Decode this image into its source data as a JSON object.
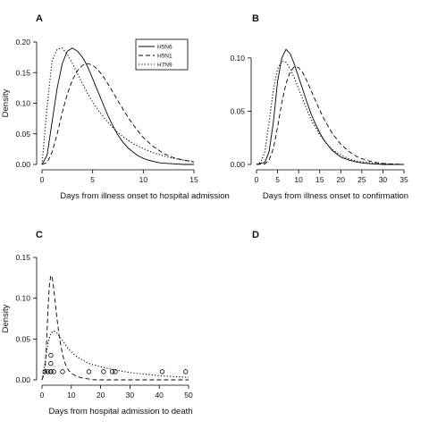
{
  "chart_data": [
    {
      "type": "line",
      "panel_label": "A",
      "xlabel": "Days from illness onset to hospital admission",
      "ylabel": "Density",
      "xlim": [
        0,
        15
      ],
      "ylim": [
        0,
        0.2
      ],
      "xticks": [
        0,
        5,
        10,
        15
      ],
      "yticks": [
        0.0,
        0.05,
        0.1,
        0.15,
        0.2
      ],
      "grid": false,
      "legend": {
        "position": "top-right",
        "entries": [
          "H5N6",
          "H5N1",
          "H7N9"
        ]
      },
      "series": [
        {
          "name": "H5N6",
          "style": "solid",
          "x": [
            0,
            0.5,
            1,
            1.5,
            2,
            2.5,
            3,
            3.5,
            4,
            4.5,
            5,
            5.5,
            6,
            6.5,
            7,
            7.5,
            8,
            8.5,
            9,
            9.5,
            10,
            10.5,
            11,
            11.5,
            12,
            13,
            14,
            15
          ],
          "y": [
            0,
            0.015,
            0.07,
            0.125,
            0.165,
            0.185,
            0.19,
            0.185,
            0.175,
            0.16,
            0.14,
            0.12,
            0.1,
            0.08,
            0.063,
            0.048,
            0.036,
            0.027,
            0.02,
            0.014,
            0.01,
            0.007,
            0.005,
            0.003,
            0.002,
            0.001,
            0,
            0
          ]
        },
        {
          "name": "H5N1",
          "style": "dashed",
          "x": [
            0,
            0.5,
            1,
            1.5,
            2,
            2.5,
            3,
            3.5,
            4,
            4.5,
            5,
            5.5,
            6,
            6.5,
            7,
            7.5,
            8,
            8.5,
            9,
            9.5,
            10,
            11,
            12,
            13,
            14,
            15
          ],
          "y": [
            0,
            0.003,
            0.02,
            0.05,
            0.085,
            0.115,
            0.138,
            0.153,
            0.162,
            0.165,
            0.162,
            0.155,
            0.145,
            0.132,
            0.118,
            0.104,
            0.09,
            0.077,
            0.065,
            0.054,
            0.044,
            0.029,
            0.018,
            0.011,
            0.007,
            0.004
          ]
        },
        {
          "name": "H7N9",
          "style": "dotted",
          "x": [
            0,
            0.5,
            1,
            1.5,
            2,
            2.5,
            3,
            3.5,
            4,
            4.5,
            5,
            5.5,
            6,
            6.5,
            7,
            7.5,
            8,
            9,
            10,
            11,
            12,
            13,
            14,
            15
          ],
          "y": [
            0,
            0.095,
            0.17,
            0.188,
            0.19,
            0.18,
            0.165,
            0.148,
            0.132,
            0.116,
            0.102,
            0.09,
            0.079,
            0.069,
            0.06,
            0.052,
            0.045,
            0.034,
            0.026,
            0.019,
            0.014,
            0.01,
            0.007,
            0.005
          ]
        }
      ]
    },
    {
      "type": "line",
      "panel_label": "B",
      "xlabel": "Days from illness onset to confirmation",
      "ylabel": "",
      "xlim": [
        0,
        35
      ],
      "ylim": [
        0,
        0.115
      ],
      "xticks": [
        0,
        5,
        10,
        15,
        20,
        25,
        30,
        35
      ],
      "yticks": [
        0.0,
        0.05,
        0.1
      ],
      "grid": false,
      "series": [
        {
          "name": "H5N6",
          "style": "solid",
          "x": [
            0,
            2,
            3,
            4,
            5,
            6,
            7,
            8,
            9,
            10,
            11,
            12,
            13,
            14,
            15,
            16,
            17,
            18,
            19,
            20,
            22,
            24,
            26,
            28,
            30,
            32,
            35
          ],
          "y": [
            0,
            0.002,
            0.012,
            0.04,
            0.078,
            0.1,
            0.108,
            0.104,
            0.094,
            0.082,
            0.07,
            0.058,
            0.047,
            0.038,
            0.03,
            0.023,
            0.018,
            0.013,
            0.01,
            0.007,
            0.004,
            0.002,
            0.001,
            0.0005,
            0,
            0,
            0
          ]
        },
        {
          "name": "H5N1",
          "style": "dashed",
          "x": [
            0,
            2,
            3,
            4,
            5,
            6,
            7,
            8,
            9,
            10,
            11,
            12,
            13,
            14,
            15,
            16,
            17,
            18,
            19,
            20,
            22,
            24,
            26,
            28,
            30,
            32,
            35
          ],
          "y": [
            0,
            0.0005,
            0.004,
            0.015,
            0.035,
            0.058,
            0.076,
            0.087,
            0.092,
            0.091,
            0.086,
            0.078,
            0.069,
            0.06,
            0.051,
            0.043,
            0.036,
            0.029,
            0.024,
            0.019,
            0.012,
            0.007,
            0.004,
            0.002,
            0.001,
            0.0005,
            0
          ]
        },
        {
          "name": "H7N9",
          "style": "dotted",
          "x": [
            0,
            1,
            2,
            3,
            4,
            5,
            6,
            7,
            8,
            9,
            10,
            11,
            12,
            13,
            14,
            15,
            16,
            17,
            18,
            19,
            20,
            22,
            24,
            26,
            28,
            30,
            32,
            35
          ],
          "y": [
            0,
            0.002,
            0.012,
            0.04,
            0.07,
            0.09,
            0.097,
            0.096,
            0.09,
            0.081,
            0.071,
            0.061,
            0.051,
            0.042,
            0.035,
            0.028,
            0.023,
            0.018,
            0.014,
            0.011,
            0.009,
            0.005,
            0.003,
            0.002,
            0.001,
            0.0005,
            0,
            0
          ]
        }
      ]
    },
    {
      "type": "line",
      "panel_label": "C",
      "xlabel": "Days from hospital admission to death",
      "ylabel": "Density",
      "xlim": [
        0,
        50
      ],
      "ylim": [
        0,
        0.15
      ],
      "xticks": [
        0,
        10,
        20,
        30,
        40,
        50
      ],
      "yticks": [
        0.0,
        0.05,
        0.1,
        0.15
      ],
      "grid": false,
      "series": [
        {
          "name": "H5N1",
          "style": "dashed",
          "x": [
            0,
            1,
            1.5,
            2,
            2.5,
            3,
            3.5,
            4,
            4.5,
            5,
            6,
            7,
            8,
            9,
            10,
            12,
            14,
            16,
            18,
            20,
            25,
            30,
            35,
            40,
            45,
            50
          ],
          "y": [
            0,
            0.01,
            0.04,
            0.085,
            0.115,
            0.128,
            0.125,
            0.112,
            0.095,
            0.078,
            0.05,
            0.031,
            0.019,
            0.012,
            0.008,
            0.004,
            0.002,
            0.001,
            0,
            0,
            0,
            0,
            0,
            0,
            0,
            0
          ]
        },
        {
          "name": "H7N9",
          "style": "dotted",
          "x": [
            0,
            1,
            2,
            3,
            4,
            5,
            6,
            7,
            8,
            9,
            10,
            12,
            14,
            16,
            18,
            20,
            25,
            30,
            35,
            40,
            45,
            50
          ],
          "y": [
            0,
            0.02,
            0.045,
            0.057,
            0.06,
            0.058,
            0.053,
            0.048,
            0.043,
            0.038,
            0.034,
            0.028,
            0.024,
            0.02,
            0.018,
            0.016,
            0.012,
            0.009,
            0.007,
            0.005,
            0.004,
            0.003
          ]
        }
      ],
      "points": {
        "name": "H5N6",
        "marker": "open-circle",
        "x": [
          1,
          2,
          3,
          3,
          3,
          3,
          4,
          7,
          16,
          21,
          24,
          25,
          41,
          49
        ],
        "y": [
          0.01,
          0.01,
          0.01,
          0.02,
          0.03,
          0.01,
          0.01,
          0.01,
          0.01,
          0.01,
          0.01,
          0.01,
          0.01,
          0.01
        ]
      }
    },
    {
      "type": "blank",
      "panel_label": "D"
    }
  ]
}
